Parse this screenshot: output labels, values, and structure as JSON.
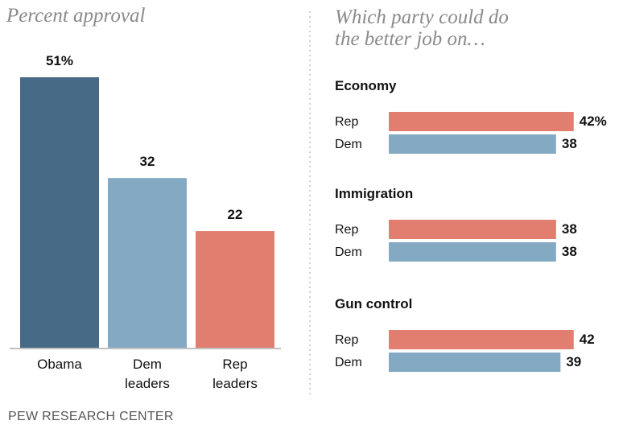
{
  "chart_data": [
    {
      "type": "bar",
      "title": "Percent approval",
      "categories": [
        [
          "Obama"
        ],
        [
          "Dem",
          "leaders"
        ],
        [
          "Rep",
          "leaders"
        ]
      ],
      "values": [
        51,
        32,
        22
      ],
      "value_labels": [
        "51%",
        "32",
        "22"
      ],
      "colors": [
        "#476a87",
        "#84aac3",
        "#e17e70"
      ],
      "ylim": [
        0,
        51
      ]
    },
    {
      "type": "bar",
      "orientation": "horizontal",
      "title": "Which party could do the  better job on…",
      "groups": [
        {
          "name": "Economy",
          "rows": [
            {
              "label": "Rep",
              "value": 42,
              "display": "42%"
            },
            {
              "label": "Dem",
              "value": 38,
              "display": "38"
            }
          ]
        },
        {
          "name": "Immigration",
          "rows": [
            {
              "label": "Rep",
              "value": 38,
              "display": "38"
            },
            {
              "label": "Dem",
              "value": 38,
              "display": "38"
            }
          ]
        },
        {
          "name": "Gun control",
          "rows": [
            {
              "label": "Rep",
              "value": 42,
              "display": "42"
            },
            {
              "label": "Dem",
              "value": 39,
              "display": "39"
            }
          ]
        }
      ],
      "colors": {
        "Rep": "#e17e70",
        "Dem": "#84aac3"
      }
    }
  ],
  "titles": {
    "left": "Percent approval",
    "right_line1": "Which party could do",
    "right_line2": "the  better job on…"
  },
  "footer": "PEW RESEARCH CENTER"
}
